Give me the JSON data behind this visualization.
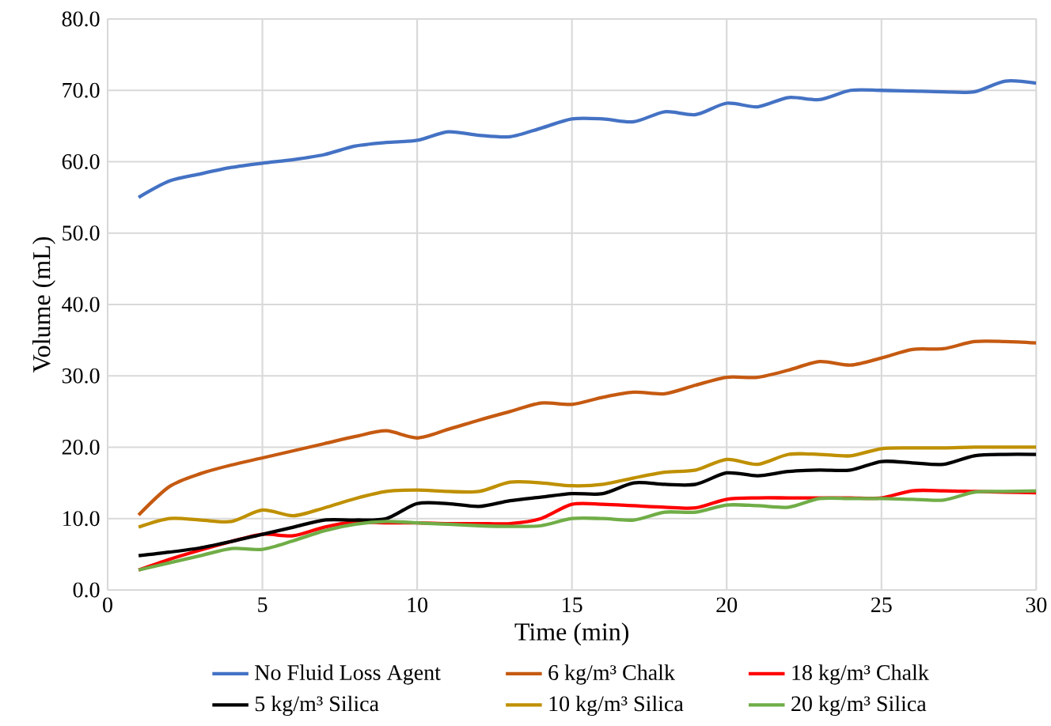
{
  "chart_data": {
    "type": "line",
    "xlabel": "Time (min)",
    "ylabel": "Volume (mL)",
    "x": [
      1,
      2,
      3,
      4,
      5,
      6,
      7,
      8,
      9,
      10,
      11,
      12,
      13,
      14,
      15,
      16,
      17,
      18,
      19,
      20,
      21,
      22,
      23,
      24,
      25,
      26,
      27,
      28,
      29,
      30
    ],
    "series": [
      {
        "name": "No Fluid Loss Agent",
        "color": "#4472c4",
        "values": [
          55,
          57.3,
          58.3,
          59.2,
          59.8,
          60.3,
          61,
          62.2,
          62.7,
          63,
          64.2,
          63.7,
          63.5,
          64.7,
          66,
          66,
          65.6,
          67,
          66.6,
          68.2,
          67.7,
          69,
          68.7,
          70,
          70,
          69.9,
          69.8,
          69.8,
          71.3,
          71
        ]
      },
      {
        "name": "6 kg/m³ Chalk",
        "color": "#c55a11",
        "values": [
          10.5,
          14.5,
          16.3,
          17.5,
          18.5,
          19.5,
          20.5,
          21.5,
          22.3,
          21.3,
          22.5,
          23.8,
          25,
          26.2,
          26,
          27,
          27.7,
          27.5,
          28.7,
          29.8,
          29.8,
          30.8,
          32,
          31.5,
          32.5,
          33.7,
          33.8,
          34.8,
          34.8,
          34.6
        ]
      },
      {
        "name": "18 kg/m³ Chalk",
        "color": "#ff0000",
        "values": [
          2.8,
          4.3,
          5.6,
          6.8,
          7.8,
          7.6,
          8.8,
          9.5,
          9.4,
          9.4,
          9.3,
          9.3,
          9.3,
          10,
          12,
          12,
          11.8,
          11.6,
          11.5,
          12.7,
          12.9,
          12.9,
          12.9,
          12.9,
          12.9,
          13.9,
          13.9,
          13.8,
          13.7,
          13.6
        ]
      },
      {
        "name": "5 kg/m³ Silica",
        "color": "#000000",
        "values": [
          4.8,
          5.3,
          5.9,
          6.8,
          7.8,
          8.8,
          9.8,
          9.8,
          10,
          12.1,
          12.1,
          11.7,
          12.5,
          13,
          13.5,
          13.5,
          15,
          14.8,
          14.8,
          16.4,
          16,
          16.6,
          16.8,
          16.8,
          18,
          17.8,
          17.6,
          18.8,
          19,
          19
        ]
      },
      {
        "name": "10 kg/m³ Silica",
        "color": "#bf9000",
        "values": [
          8.8,
          10,
          9.8,
          9.6,
          11.2,
          10.4,
          11.5,
          12.8,
          13.8,
          14,
          13.8,
          13.8,
          15.1,
          15,
          14.6,
          14.8,
          15.7,
          16.5,
          16.8,
          18.3,
          17.6,
          19,
          19,
          18.8,
          19.8,
          19.9,
          19.9,
          20,
          20,
          20
        ]
      },
      {
        "name": "20 kg/m³ Silica",
        "color": "#70ad47",
        "values": [
          2.8,
          3.8,
          4.8,
          5.8,
          5.7,
          6.9,
          8.3,
          9.2,
          9.6,
          9.4,
          9.2,
          9,
          8.9,
          9,
          10,
          10,
          9.8,
          10.9,
          10.9,
          11.9,
          11.8,
          11.6,
          12.8,
          12.8,
          12.8,
          12.7,
          12.6,
          13.7,
          13.8,
          13.9
        ]
      }
    ],
    "xlim": [
      0,
      30
    ],
    "xticks": [
      0,
      5,
      10,
      15,
      20,
      25,
      30
    ],
    "ylim": [
      0,
      80
    ],
    "yticks": [
      {
        "value": 0,
        "label": "0.0"
      },
      {
        "value": 10,
        "label": "10.0"
      },
      {
        "value": 20,
        "label": "20.0"
      },
      {
        "value": 30,
        "label": "30.0"
      },
      {
        "value": 40,
        "label": "40.0"
      },
      {
        "value": 50,
        "label": "50.0"
      },
      {
        "value": 60,
        "label": "60.0"
      },
      {
        "value": 70,
        "label": "70.0"
      },
      {
        "value": 80,
        "label": "80.0"
      }
    ],
    "grid": true,
    "legend": "bottom",
    "marker": "none",
    "line_style": "solid"
  }
}
